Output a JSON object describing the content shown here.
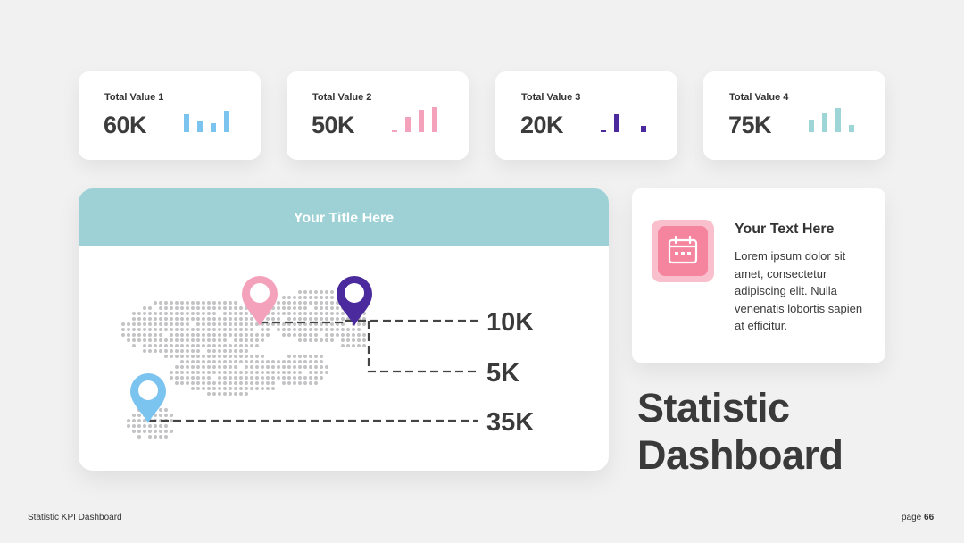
{
  "kpis": [
    {
      "label": "Total Value 1",
      "value": "60K",
      "bars": [
        0.7,
        0.45,
        0.35,
        0.85
      ],
      "color": "#7cc4f0",
      "bar_colors": [
        "#7cc4f0",
        "#7cc4f0",
        "#7cc4f0",
        "#7cc4f0"
      ]
    },
    {
      "label": "Total Value 2",
      "value": "50K",
      "bars": [
        0.08,
        0.6,
        0.9,
        1.0
      ],
      "color": "#f4a2bb",
      "bar_colors": [
        "#f4a2bb",
        "#f4a2bb",
        "#f4a2bb",
        "#f4a2bb"
      ]
    },
    {
      "label": "Total Value 3",
      "value": "20K",
      "bars": [
        0.05,
        0.7,
        0.0,
        0.25
      ],
      "color": "#4a2a9c",
      "bar_colors": [
        "#4a2a9c",
        "#4a2a9c",
        "#4a2a9c",
        "#4a2a9c"
      ]
    },
    {
      "label": "Total Value 4",
      "value": "75K",
      "bars": [
        0.5,
        0.75,
        0.95,
        0.3
      ],
      "color": "#9ed6d8",
      "bar_colors": [
        "#9ed6d8",
        "#9ed6d8",
        "#9ed6d8",
        "#9ed6d8"
      ]
    }
  ],
  "map_card": {
    "title": "Your Title Here",
    "header_color": "#9ed1d6",
    "pins": [
      {
        "icon": "pink-map-pin-icon",
        "color": "#f4a2bb",
        "value": "10K"
      },
      {
        "icon": "purple-map-pin-icon",
        "color": "#4a2a9c",
        "value": "5K"
      },
      {
        "icon": "blue-map-pin-icon",
        "color": "#7cc4f0",
        "value": "35K"
      }
    ]
  },
  "text_card": {
    "icon": "calendar-icon",
    "icon_color": "#f5849f",
    "heading": "Your Text Here",
    "body": "Lorem ipsum dolor sit amet, consectetur adipiscing elit. Nulla venenatis lobortis sapien at efficitur."
  },
  "main_title": "Statistic Dashboard",
  "footer": {
    "left": "Statistic KPI Dashboard",
    "page_label": "page",
    "page_number": "66"
  }
}
